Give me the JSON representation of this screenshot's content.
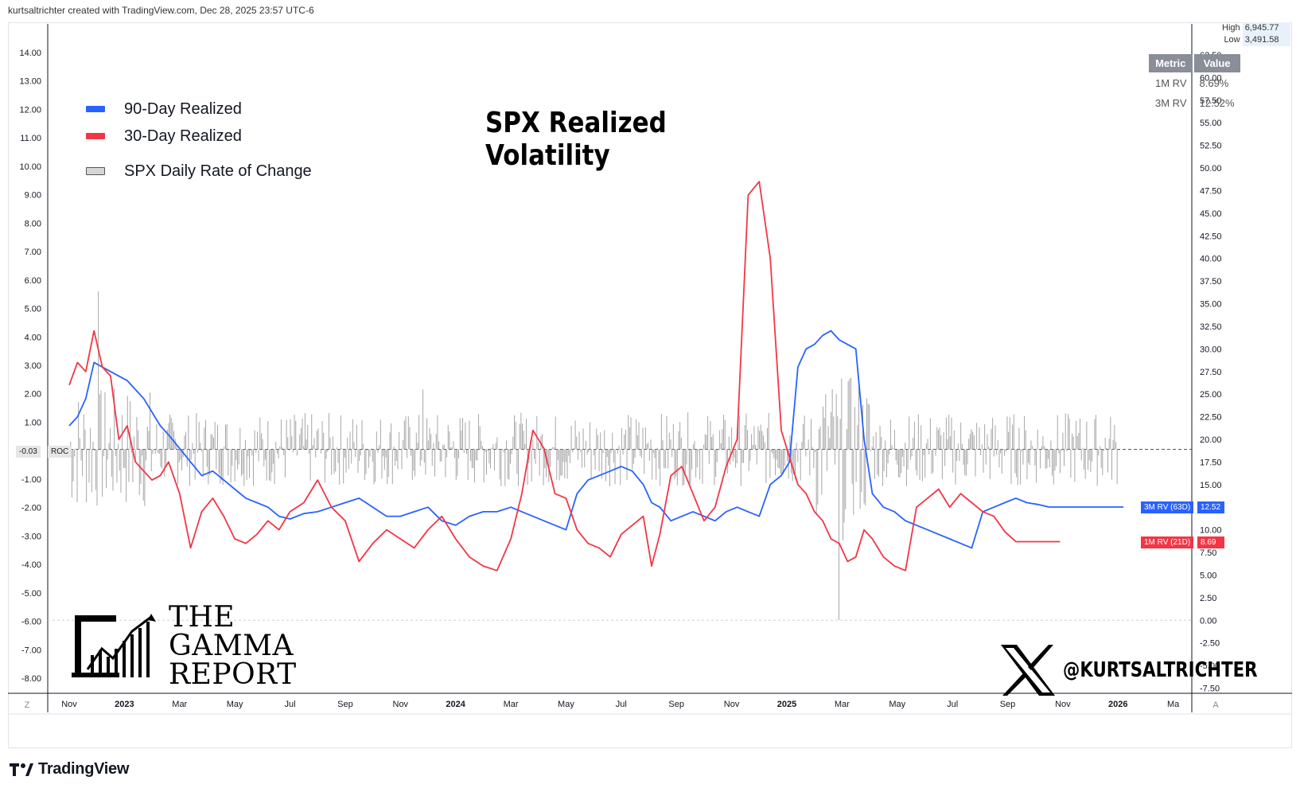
{
  "header": {
    "credit": "kurtsaltrichter created with TradingView.com, Dec 28, 2025 23:57 UTC-6"
  },
  "footer": {
    "tradingview_label": "TradingView"
  },
  "brand": {
    "line1": "THE",
    "line2": "GAMMA",
    "line3": "REPORT"
  },
  "handle": {
    "text": "@KURTSALTRICHTER"
  },
  "metric_table": {
    "headers": [
      "Metric",
      "Value"
    ],
    "rows": [
      {
        "metric": "1M RV",
        "value": "8.69%"
      },
      {
        "metric": "3M RV",
        "value": "12.52%"
      }
    ]
  },
  "hilo": {
    "high_label": "High",
    "high_value": "6,945.77",
    "low_label": "Low",
    "low_value": "3,491.58"
  },
  "tags": {
    "rv3m_label": "3M RV (63D)",
    "rv3m_value": "12.52",
    "rv1m_label": "1M RV (21D)",
    "rv1m_value": "8.69",
    "roc_value": "-0.03",
    "roc_label": "ROC"
  },
  "colors": {
    "blue": "#2962ff",
    "red": "#f23645",
    "bars": "#9a9a9a",
    "rv3m_tag": "#2962ff",
    "rv1m_tag": "#f23645"
  },
  "chart_data": {
    "type": "line",
    "title": "SPX Realized Volatility",
    "legend": [
      {
        "name": "90-Day Realized",
        "color": "#2962ff"
      },
      {
        "name": "30-Day Realized",
        "color": "#f23645"
      },
      {
        "name": "SPX Daily Rate of Change",
        "color": "#d6d6d6"
      }
    ],
    "x_ticks": [
      "Nov",
      "2023",
      "Mar",
      "May",
      "Jul",
      "Sep",
      "Nov",
      "2024",
      "Mar",
      "May",
      "Jul",
      "Sep",
      "Nov",
      "2025",
      "Mar",
      "May",
      "Jul",
      "Sep",
      "Nov",
      "2026",
      "Ma"
    ],
    "x_tick_bold": [
      false,
      true,
      false,
      false,
      false,
      false,
      false,
      true,
      false,
      false,
      false,
      false,
      false,
      true,
      false,
      false,
      false,
      false,
      false,
      true,
      false
    ],
    "left_axis": {
      "ticks": [
        "14.00",
        "13.00",
        "12.00",
        "11.00",
        "10.00",
        "9.00",
        "8.00",
        "7.00",
        "6.00",
        "5.00",
        "4.00",
        "3.00",
        "2.00",
        "1.00",
        "-1.00",
        "-2.00",
        "-3.00",
        "-4.00",
        "-5.00",
        "-6.00",
        "-7.00",
        "-8.00"
      ],
      "ylim": [
        -8.3,
        14.3
      ]
    },
    "right_axis": {
      "ticks": [
        "62.50",
        "60.00",
        "57.50",
        "55.00",
        "52.50",
        "50.00",
        "47.50",
        "45.00",
        "42.50",
        "40.00",
        "37.50",
        "35.00",
        "32.50",
        "30.00",
        "27.50",
        "25.00",
        "22.50",
        "20.00",
        "17.50",
        "15.00",
        "12.50",
        "10.00",
        "7.50",
        "5.00",
        "2.50",
        "0.00",
        "-2.50",
        "-5.00",
        "-7.50"
      ],
      "ylim": [
        -7.5,
        62.5
      ]
    },
    "roc_zero_line": 18.9,
    "corner_labels": {
      "left": "Z",
      "right": "A"
    },
    "series": [
      {
        "name": "90-Day Realized",
        "axis": "right",
        "x_months": [
          0,
          0.3,
          0.6,
          0.9,
          1.2,
          1.5,
          1.8,
          2.1,
          2.4,
          2.7,
          3.0,
          3.3,
          3.6,
          4.0,
          4.4,
          4.8,
          5.2,
          5.6,
          6.0,
          6.4,
          6.8,
          7.2,
          7.6,
          8.0,
          8.5,
          9.0,
          9.5,
          10.0,
          10.5,
          11.0,
          11.5,
          12.0,
          12.5,
          13.0,
          13.5,
          14.0,
          14.5,
          15.0,
          15.5,
          16.0,
          16.4,
          16.8,
          17.2,
          17.6,
          18.0,
          18.4,
          18.8,
          19.2,
          19.6,
          20.0,
          20.4,
          20.8,
          21.1,
          21.4,
          21.8,
          22.2,
          22.6,
          23.0,
          23.4,
          23.8,
          24.2,
          24.6,
          25.0,
          25.4,
          25.8,
          26.1,
          26.4,
          26.7,
          27.0,
          27.3,
          27.6,
          27.9,
          28.2,
          28.5,
          28.8,
          29.1,
          29.5,
          29.9,
          30.3,
          30.7,
          31.1,
          31.5,
          31.9,
          32.3,
          32.7,
          33.1,
          33.5,
          33.9,
          34.3,
          34.7,
          35.1,
          35.5,
          35.9,
          36.3,
          36.7,
          37.0,
          37.3,
          37.6,
          37.9,
          38.2
        ],
        "values": [
          21.5,
          22.5,
          24.5,
          28.5,
          28.0,
          27.5,
          27.0,
          26.5,
          25.5,
          24.5,
          23.0,
          21.5,
          20.5,
          19.0,
          17.5,
          16.0,
          16.5,
          15.5,
          14.5,
          13.5,
          13.0,
          12.5,
          11.5,
          11.2,
          11.8,
          12.0,
          12.5,
          13.0,
          13.5,
          12.5,
          11.5,
          11.5,
          12.0,
          12.5,
          11.0,
          10.5,
          11.5,
          12.0,
          12.0,
          12.5,
          12.0,
          11.5,
          11.0,
          10.5,
          10.0,
          14.0,
          15.5,
          16.0,
          16.5,
          17.0,
          16.5,
          15.0,
          13.0,
          12.5,
          11.0,
          11.5,
          12.0,
          11.5,
          11.0,
          12.0,
          12.5,
          12.0,
          11.5,
          15.0,
          16.0,
          17.5,
          28.0,
          30.0,
          30.5,
          31.5,
          32.0,
          31.0,
          30.5,
          30.0,
          20.0,
          14.0,
          12.5,
          12.0,
          11.0,
          10.5,
          10.0,
          9.5,
          9.0,
          8.5,
          8.0,
          12.0,
          12.5,
          13.0,
          13.5,
          13.0,
          12.8,
          12.52,
          12.52,
          12.52,
          12.52,
          12.52,
          12.52,
          12.52,
          12.52,
          12.52
        ]
      },
      {
        "name": "30-Day Realized",
        "axis": "right",
        "x_months": [
          0,
          0.3,
          0.6,
          0.9,
          1.2,
          1.5,
          1.8,
          2.1,
          2.4,
          2.7,
          3.0,
          3.3,
          3.6,
          4.0,
          4.4,
          4.8,
          5.2,
          5.6,
          6.0,
          6.4,
          6.8,
          7.2,
          7.6,
          8.0,
          8.5,
          9.0,
          9.5,
          10.0,
          10.5,
          11.0,
          11.5,
          12.0,
          12.5,
          13.0,
          13.5,
          14.0,
          14.5,
          15.0,
          15.5,
          16.0,
          16.4,
          16.8,
          17.2,
          17.6,
          18.0,
          18.4,
          18.8,
          19.2,
          19.6,
          20.0,
          20.4,
          20.8,
          21.1,
          21.4,
          21.8,
          22.2,
          22.6,
          23.0,
          23.4,
          23.8,
          24.2,
          24.6,
          25.0,
          25.4,
          25.8,
          26.1,
          26.4,
          26.7,
          27.0,
          27.3,
          27.6,
          27.9,
          28.2,
          28.5,
          28.8,
          29.1,
          29.5,
          29.9,
          30.3,
          30.7,
          31.1,
          31.5,
          31.9,
          32.3,
          32.7,
          33.1,
          33.5,
          33.9,
          34.3,
          34.7,
          35.1,
          35.5,
          35.9
        ],
        "values": [
          26.0,
          28.5,
          27.5,
          32.0,
          28.0,
          27.0,
          20.0,
          21.5,
          17.5,
          16.5,
          15.5,
          16.0,
          17.5,
          14.0,
          8.0,
          12.0,
          13.5,
          11.5,
          9.0,
          8.5,
          9.5,
          11.0,
          10.0,
          12.0,
          13.0,
          15.5,
          12.5,
          11.0,
          6.5,
          8.5,
          10.0,
          9.0,
          8.0,
          10.0,
          11.5,
          9.0,
          7.0,
          6.0,
          5.5,
          9.0,
          14.0,
          21.0,
          19.0,
          14.0,
          13.5,
          10.0,
          8.5,
          8.0,
          7.0,
          9.5,
          10.5,
          11.5,
          6.0,
          9.5,
          16.0,
          17.0,
          14.0,
          11.0,
          12.5,
          17.0,
          20.0,
          47.0,
          48.5,
          40.0,
          21.0,
          18.0,
          15.0,
          14.0,
          12.0,
          11.0,
          9.0,
          8.5,
          6.5,
          7.0,
          10.0,
          9.0,
          7.0,
          6.0,
          5.5,
          12.5,
          13.5,
          14.5,
          12.5,
          14.0,
          13.0,
          12.0,
          11.5,
          9.8,
          8.69,
          8.69,
          8.69,
          8.69,
          8.69
        ]
      },
      {
        "name": "SPX Daily Rate of Change",
        "axis": "left",
        "type": "bar",
        "x_start_month": 0,
        "x_end_month": 38.0,
        "x_spacing_month": 0.048,
        "spikes": [
          {
            "x_month": 1.05,
            "value": 5.55
          },
          {
            "x_month": 12.8,
            "value": 2.1
          },
          {
            "x_month": 28.2,
            "value": 2.4
          },
          {
            "x_month": 27.9,
            "value": -6.0
          },
          {
            "x_month": 28.05,
            "value": -3.2
          }
        ]
      }
    ]
  }
}
